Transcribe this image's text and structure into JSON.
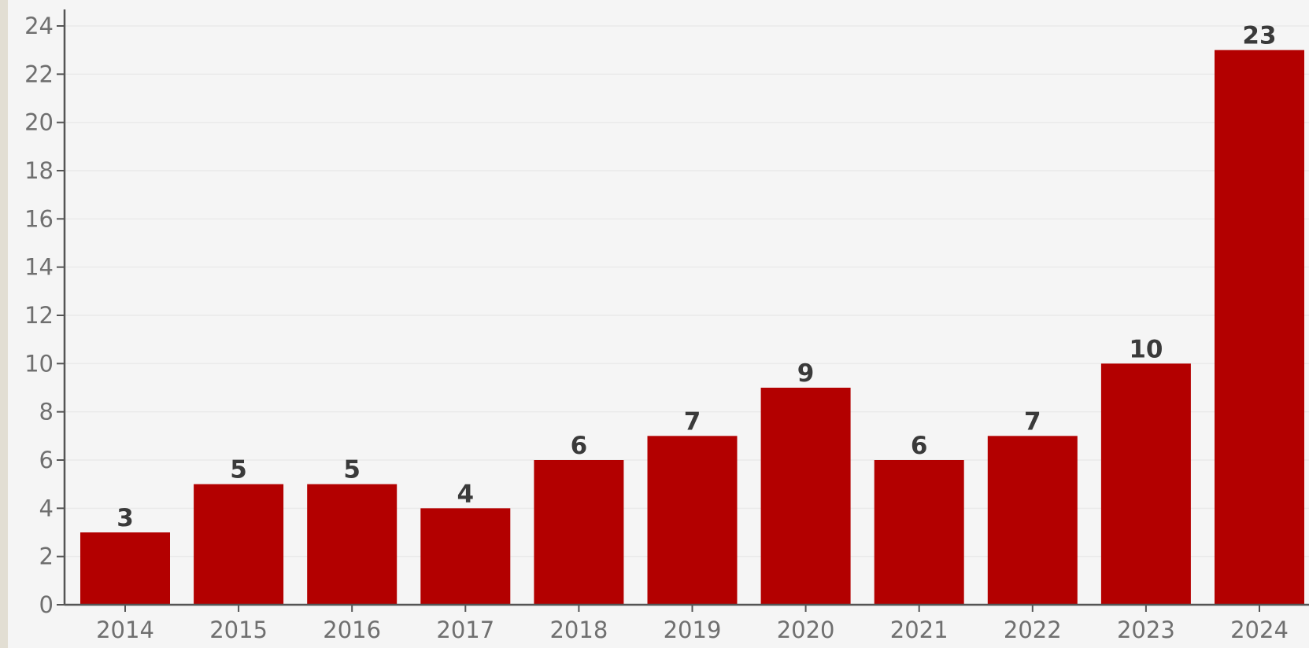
{
  "chart_data": {
    "type": "bar",
    "categories": [
      "2014",
      "2015",
      "2016",
      "2017",
      "2018",
      "2019",
      "2020",
      "2021",
      "2022",
      "2023",
      "2024"
    ],
    "values": [
      3,
      5,
      5,
      4,
      6,
      7,
      9,
      6,
      7,
      10,
      23
    ],
    "title": "",
    "xlabel": "",
    "ylabel": "",
    "ylim": [
      0,
      24
    ],
    "yticks": [
      "0",
      "2",
      "4",
      "6",
      "8",
      "10",
      "12",
      "14",
      "16",
      "18",
      "20",
      "22",
      "24"
    ],
    "grid": true,
    "legend": "none",
    "bar_color": "#b30000",
    "grid_color": "#eaeaea",
    "axis_color": "#555555",
    "background_color": "#f5f5f5"
  }
}
